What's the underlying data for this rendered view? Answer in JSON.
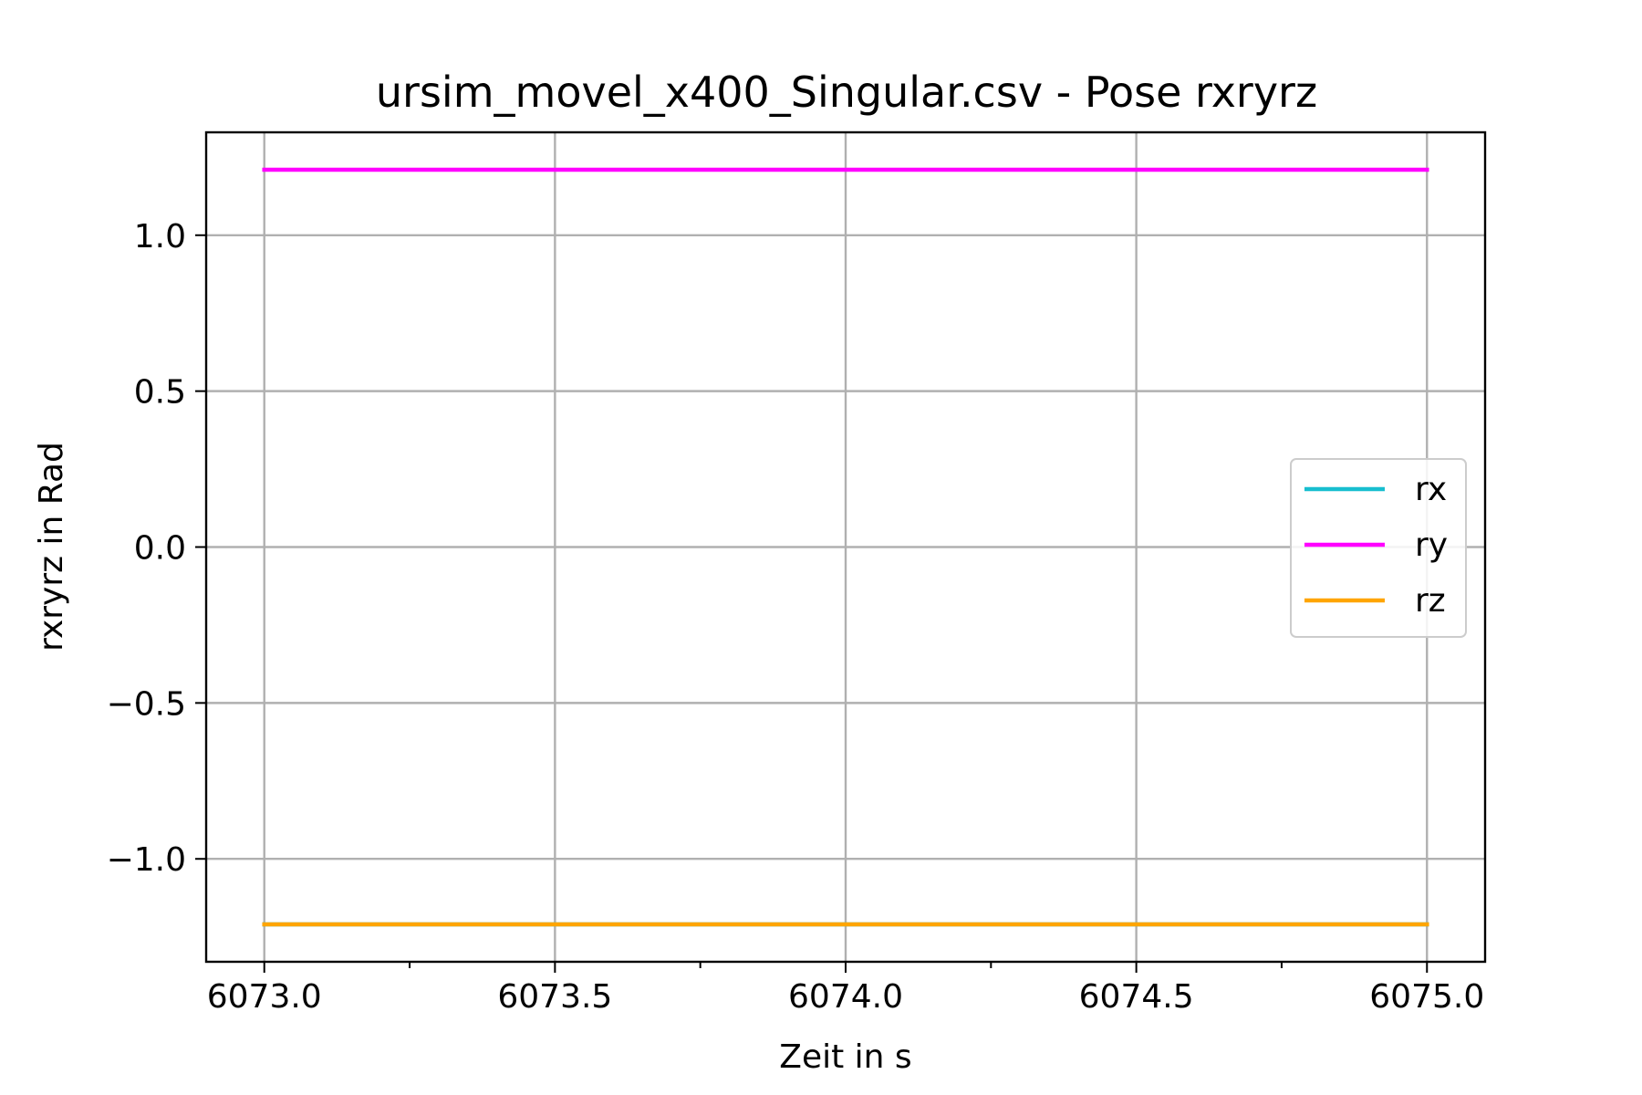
{
  "chart_data": {
    "type": "line",
    "title": "ursim_movel_x400_Singular.csv - Pose rxryrz",
    "xlabel": "Zeit in s",
    "ylabel": "rxryrz in Rad",
    "xlim": [
      6072.9,
      6075.1
    ],
    "ylim": [
      -1.33,
      1.33
    ],
    "xticks": [
      6073.0,
      6073.5,
      6074.0,
      6074.5,
      6075.0
    ],
    "xtick_labels": [
      "6073.0",
      "6073.5",
      "6074.0",
      "6074.5",
      "6075.0"
    ],
    "xminor_ticks": [
      6073.25,
      6073.75,
      6074.25,
      6074.75
    ],
    "yticks": [
      1.0,
      0.5,
      0.0,
      -0.5,
      -1.0
    ],
    "ytick_labels": [
      "1.0",
      "0.5",
      "0.0",
      "−0.5",
      "−1.0"
    ],
    "grid": true,
    "legend_position": "center-right",
    "series": [
      {
        "name": "rx",
        "color": "#17becf",
        "x": [
          6073.0,
          6075.0
        ],
        "values": [
          -1.21,
          -1.21
        ]
      },
      {
        "name": "ry",
        "color": "#ff00ff",
        "x": [
          6073.0,
          6075.0
        ],
        "values": [
          1.21,
          1.21
        ]
      },
      {
        "name": "rz",
        "color": "#ffa500",
        "x": [
          6073.0,
          6075.0
        ],
        "values": [
          -1.21,
          -1.21
        ]
      }
    ]
  }
}
